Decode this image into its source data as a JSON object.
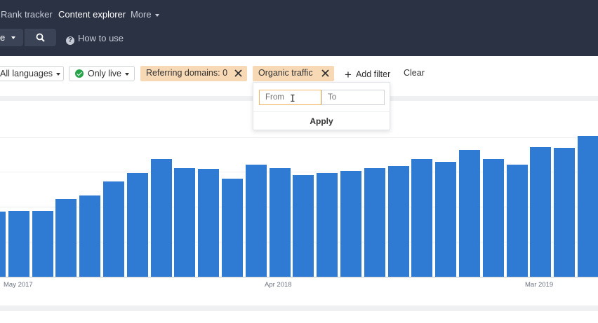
{
  "topnav": {
    "items": [
      {
        "label": "Rank tracker"
      },
      {
        "label": "Content explorer"
      },
      {
        "label": "More"
      }
    ]
  },
  "toolbar": {
    "mode_value": "e",
    "search_icon": "search-icon",
    "how_to_use": "How to use"
  },
  "filters": {
    "languages": "All languages",
    "only_live": "Only live",
    "referring_domains": "Referring domains: 0",
    "organic_traffic": "Organic traffic",
    "add_filter": "Add filter",
    "clear": "Clear"
  },
  "popover": {
    "from_placeholder": "From",
    "to_placeholder": "To",
    "apply": "Apply"
  },
  "colors": {
    "topbar": "#2b3244",
    "bar": "#2f7ad3",
    "filter_active": "#f8d9b5",
    "live": "#27a44a"
  },
  "chart_data": {
    "type": "bar",
    "x_tick_labels": [
      "May 2017",
      "Apr 2018",
      "Mar 2019"
    ],
    "values": [
      72,
      73,
      73,
      86,
      90,
      105,
      114,
      130,
      120,
      119,
      108,
      124,
      120,
      112,
      114,
      117,
      120,
      122,
      130,
      127,
      140,
      130,
      124,
      143,
      142,
      155
    ],
    "ylim": [
      0,
      170
    ],
    "grid": true
  }
}
